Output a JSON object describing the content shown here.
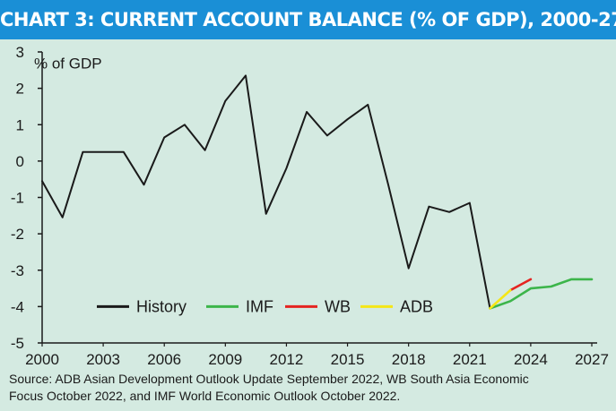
{
  "title": "CHART 3: CURRENT ACCOUNT BALANCE (% OF GDP), 2000-27",
  "source": {
    "line1": "Source: ADB Asian Development Outlook Update September 2022, WB South Asia Economic",
    "line2": "Focus October 2022, and IMF World Economic Outlook October 2022."
  },
  "chart_data": {
    "type": "line",
    "title": "CHART 3: CURRENT ACCOUNT BALANCE (% OF GDP), 2000-27",
    "ylabel": "% of GDP",
    "xlabel": "",
    "xlim": [
      2000,
      2027
    ],
    "ylim": [
      -5,
      3
    ],
    "x_ticks": [
      "2000",
      "2003",
      "2006",
      "2009",
      "2012",
      "2015",
      "2018",
      "2021",
      "2024",
      "2027"
    ],
    "y_ticks": [
      "3",
      "2",
      "1",
      "0",
      "-1",
      "-2",
      "-3",
      "-4",
      "-5"
    ],
    "grid": false,
    "legend_position": "bottom-center",
    "series": [
      {
        "name": "History",
        "color": "#1a1a1a",
        "x": [
          2000,
          2001,
          2002,
          2003,
          2004,
          2005,
          2006,
          2007,
          2008,
          2009,
          2010,
          2011,
          2012,
          2013,
          2014,
          2015,
          2016,
          2017,
          2018,
          2019,
          2020,
          2021,
          2022
        ],
        "y": [
          -0.55,
          -1.55,
          0.25,
          0.25,
          0.25,
          -0.65,
          0.65,
          1.0,
          0.3,
          1.65,
          2.35,
          -1.45,
          -0.2,
          1.35,
          0.7,
          1.15,
          1.55,
          -0.65,
          -2.95,
          -1.25,
          -1.4,
          -1.15,
          -4.05
        ]
      },
      {
        "name": "IMF",
        "color": "#3cb54a",
        "x": [
          2022,
          2023,
          2024,
          2025,
          2026,
          2027
        ],
        "y": [
          -4.05,
          -3.85,
          -3.5,
          -3.45,
          -3.25,
          -3.25
        ]
      },
      {
        "name": "WB",
        "color": "#e52421",
        "x": [
          2023,
          2024
        ],
        "y": [
          -3.55,
          -3.25
        ]
      },
      {
        "name": "ADB",
        "color": "#f5e616",
        "x": [
          2022,
          2023
        ],
        "y": [
          -4.05,
          -3.55
        ]
      }
    ]
  }
}
